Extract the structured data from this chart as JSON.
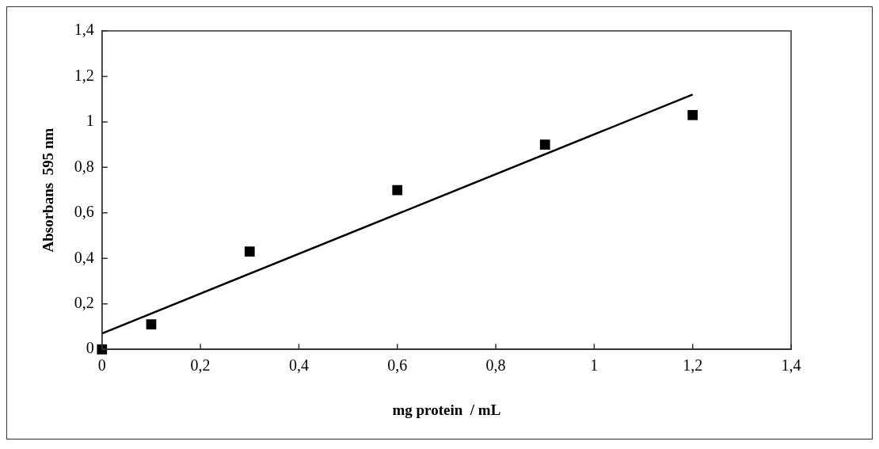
{
  "chart_data": {
    "type": "scatter",
    "xlabel": "mg protein  / mL",
    "ylabel": "Absorbans  595 nm",
    "xlim": [
      0,
      1.4
    ],
    "ylim": [
      0,
      1.4
    ],
    "xticks": [
      0,
      {
        "value": 0.2,
        "label": "0,2"
      },
      {
        "value": 0.4,
        "label": "0,4"
      },
      {
        "value": 0.6,
        "label": "0,6"
      },
      {
        "value": 0.8,
        "label": "0,8"
      },
      1,
      {
        "value": 1.2,
        "label": "1,2"
      },
      {
        "value": 1.4,
        "label": "1,4"
      }
    ],
    "yticks": [
      0,
      {
        "value": 0.2,
        "label": "0,2"
      },
      {
        "value": 0.4,
        "label": "0,4"
      },
      {
        "value": 0.6,
        "label": "0,6"
      },
      {
        "value": 0.8,
        "label": "0,8"
      },
      1,
      {
        "value": 1.2,
        "label": "1,2"
      },
      {
        "value": 1.4,
        "label": "1,4"
      }
    ],
    "grid": false,
    "legend": false,
    "series": [
      {
        "color": "#000000",
        "marker": "square",
        "x": [
          0,
          0.1,
          0.3,
          0.6,
          0.9,
          1.2
        ],
        "values": [
          0,
          0.11,
          0.43,
          0.7,
          0.9,
          1.03
        ]
      },
      {
        "type": "line",
        "color": "#000000",
        "marker": "none",
        "line_style": "solid",
        "x": [
          0,
          1.2
        ],
        "values": [
          0.07,
          1.12
        ]
      }
    ]
  }
}
